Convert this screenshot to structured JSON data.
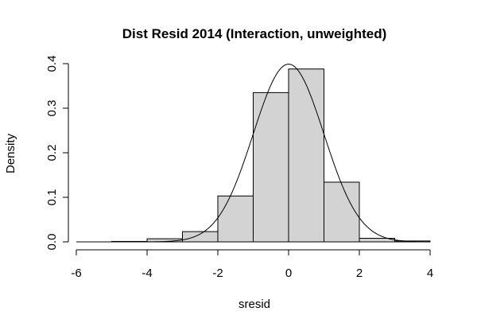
{
  "chart_data": {
    "type": "bar",
    "title": "Dist Resid 2014 (Interaction, unweighted)",
    "xlabel": "sresid",
    "ylabel": "Density",
    "xlim": [
      -6,
      4
    ],
    "ylim": [
      0,
      0.4
    ],
    "x_ticks": [
      "-6",
      "-4",
      "-2",
      "0",
      "2",
      "4"
    ],
    "y_ticks": [
      "0.0",
      "0.1",
      "0.2",
      "0.3",
      "0.4"
    ],
    "bar_fill": "#d3d3d3",
    "bins": [
      {
        "from": -5,
        "to": -4,
        "density": 0.001
      },
      {
        "from": -4,
        "to": -3,
        "density": 0.007
      },
      {
        "from": -3,
        "to": -2,
        "density": 0.023
      },
      {
        "from": -2,
        "to": -1,
        "density": 0.103
      },
      {
        "from": -1,
        "to": 0,
        "density": 0.335
      },
      {
        "from": 0,
        "to": 1,
        "density": 0.388
      },
      {
        "from": 1,
        "to": 2,
        "density": 0.134
      },
      {
        "from": 2,
        "to": 3,
        "density": 0.008
      },
      {
        "from": 3,
        "to": 4,
        "density": 0.002
      }
    ],
    "curve": {
      "type": "normal",
      "mean": 0,
      "sd": 1,
      "from": -6,
      "to": 4
    }
  }
}
